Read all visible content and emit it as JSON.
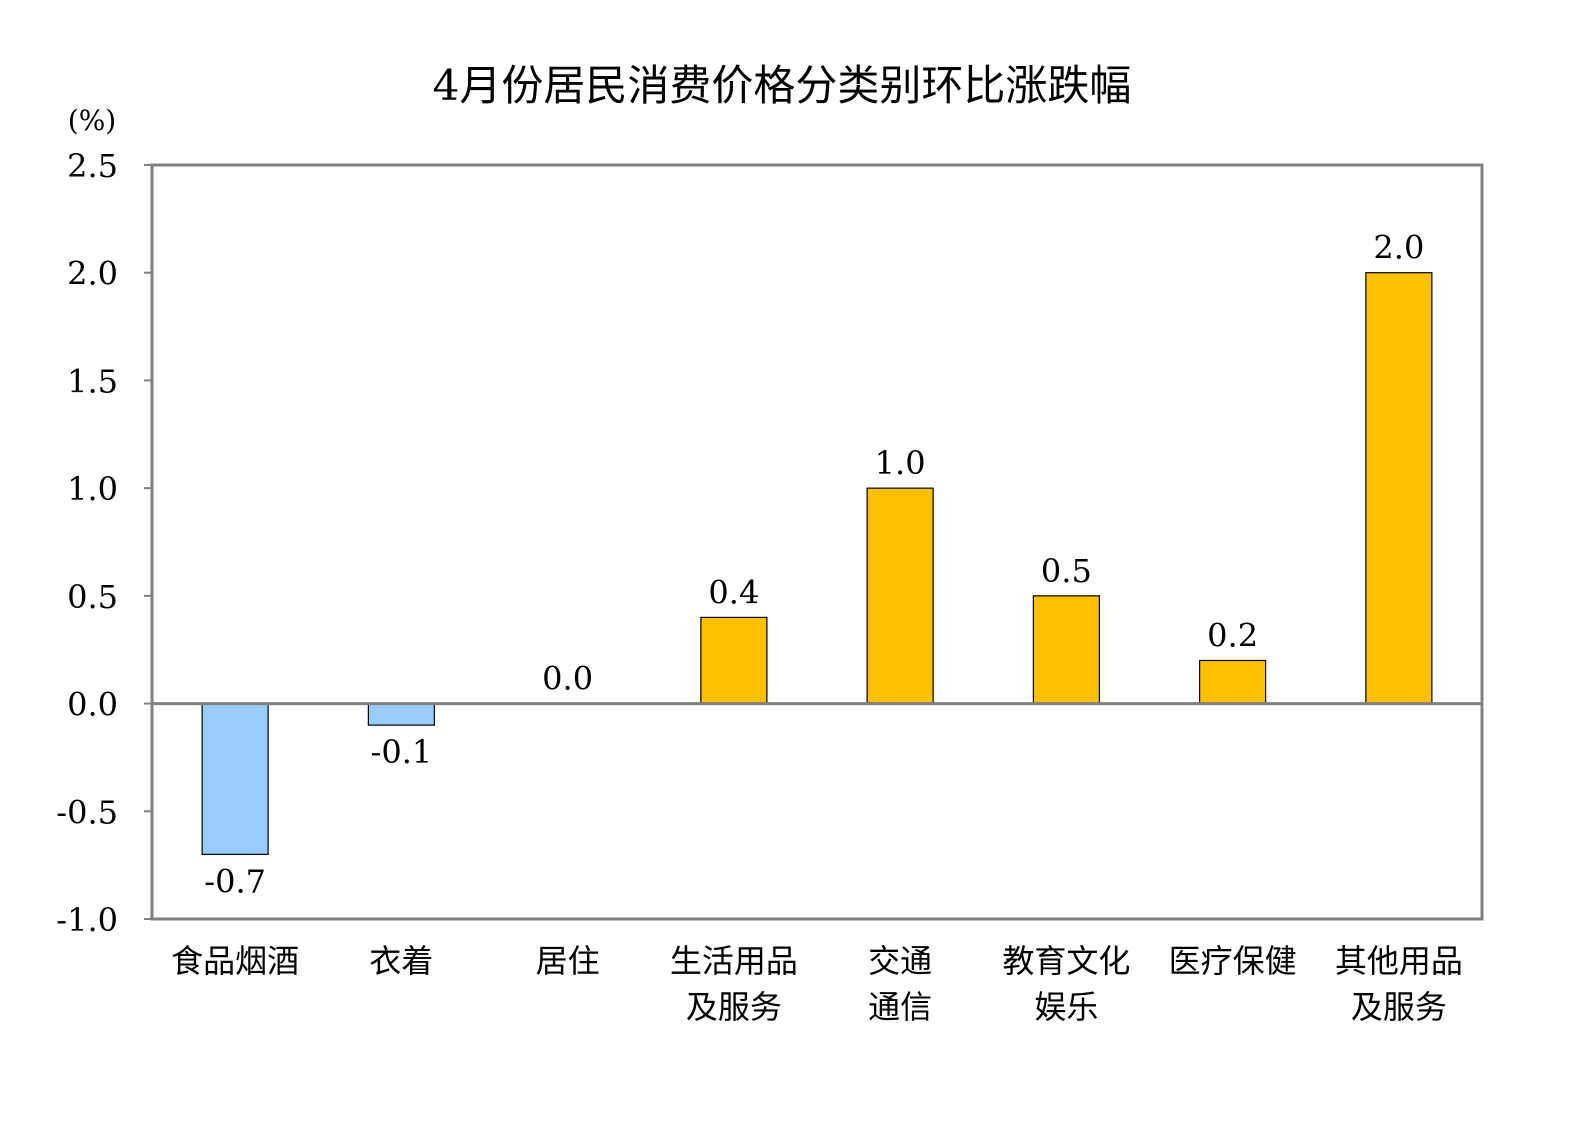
{
  "chart_data": {
    "type": "bar",
    "title": "4月份居民消费价格分类别环比涨跌幅",
    "ylabel": "(%)",
    "xlabel": "",
    "ylim": [
      -1.0,
      2.5
    ],
    "yticks": [
      "2.5",
      "2.0",
      "1.5",
      "1.0",
      "0.5",
      "0.0",
      "-0.5",
      "-1.0"
    ],
    "ytick_values": [
      2.5,
      2.0,
      1.5,
      1.0,
      0.5,
      0.0,
      -0.5,
      -1.0
    ],
    "grid": false,
    "categories": [
      [
        "食品烟酒"
      ],
      [
        "衣着"
      ],
      [
        "居住"
      ],
      [
        "生活用品",
        "及服务"
      ],
      [
        "交通",
        "通信"
      ],
      [
        "教育文化",
        "娱乐"
      ],
      [
        "医疗保健"
      ],
      [
        "其他用品",
        "及服务"
      ]
    ],
    "values": [
      -0.7,
      -0.1,
      0.0,
      0.4,
      1.0,
      0.5,
      0.2,
      2.0
    ],
    "value_labels": [
      "-0.7",
      "-0.1",
      "0.0",
      "0.4",
      "1.0",
      "0.5",
      "0.2",
      "2.0"
    ],
    "colors": {
      "positive": "#FFC000",
      "negative": "#99CCFF",
      "axis": "#808080"
    }
  }
}
